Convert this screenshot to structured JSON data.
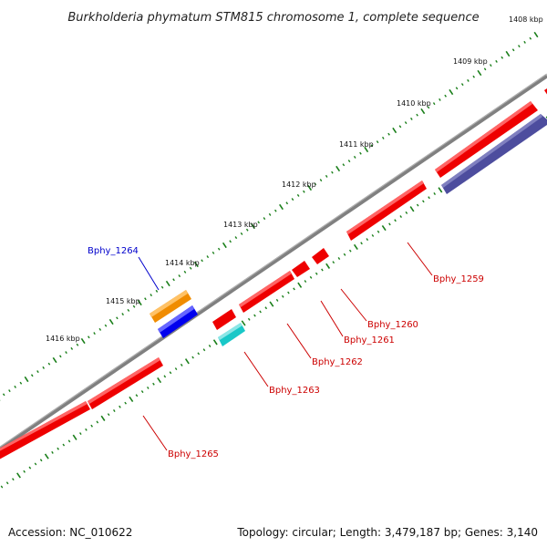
{
  "title": "Burkholderia phymatum STM815 chromosome 1, complete sequence",
  "footer": {
    "accession": "Accession: NC_010622",
    "summary": "Topology: circular; Length: 3,479,187 bp; Genes: 3,140"
  },
  "colors": {
    "backbone": "#808080",
    "tick": "#1a7f1a",
    "gene_red": "#ee0000",
    "gene_orange": "#f08c00",
    "gene_blue": "#0000ee",
    "gene_cyan": "#19c8c8",
    "gene_slate": "#4d4d9e",
    "label_red": "#cc0000",
    "label_blue": "#0000cc"
  },
  "kbp_labels": [
    "1408 kbp",
    "1409 kbp",
    "1410 kbp",
    "1411 kbp",
    "1412 kbp",
    "1413 kbp",
    "1414 kbp",
    "1415 kbp",
    "1416 kbp"
  ],
  "gene_labels": [
    {
      "id": "bphy-1264",
      "text": "Bphy_1264",
      "color": "blue"
    },
    {
      "id": "bphy-1259",
      "text": "Bphy_1259",
      "color": "red"
    },
    {
      "id": "bphy-1260",
      "text": "Bphy_1260",
      "color": "red"
    },
    {
      "id": "bphy-1261",
      "text": "Bphy_1261",
      "color": "red"
    },
    {
      "id": "bphy-1262",
      "text": "Bphy_1262",
      "color": "red"
    },
    {
      "id": "bphy-1263",
      "text": "Bphy_1263",
      "color": "red"
    },
    {
      "id": "bphy-1265",
      "text": "Bphy_1265",
      "color": "red"
    }
  ]
}
